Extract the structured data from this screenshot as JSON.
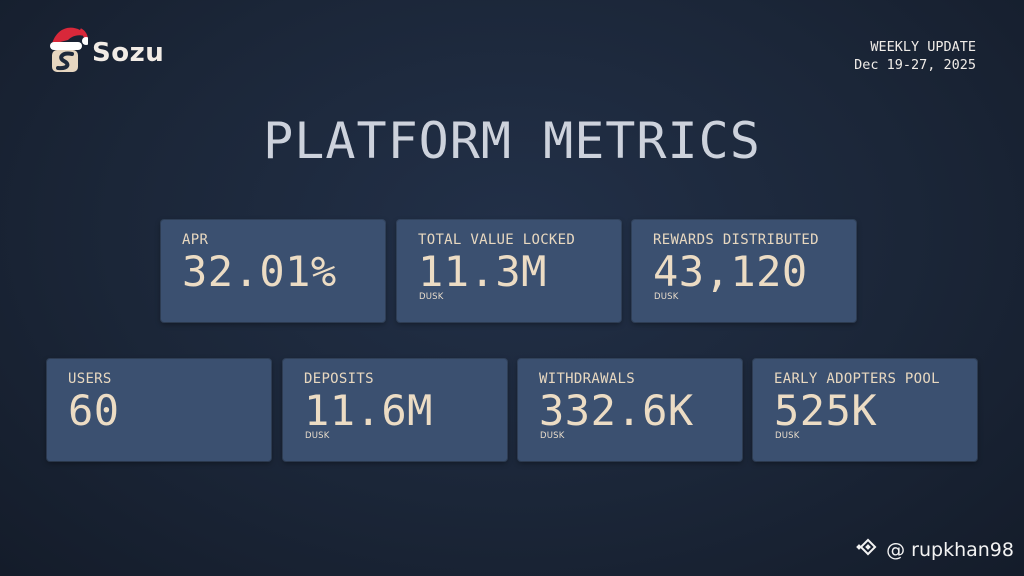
{
  "brand": {
    "name": "Sozu",
    "mark_icon": "santa-hat-s-logo-icon"
  },
  "header": {
    "line1": "WEEKLY UPDATE",
    "line2": "Dec 19-27, 2025"
  },
  "title": "PLATFORM METRICS",
  "metrics_top": [
    {
      "label": "APR",
      "value": "32.01%",
      "unit": ""
    },
    {
      "label": "TOTAL VALUE LOCKED",
      "value": "11.3M",
      "unit": "DUSK"
    },
    {
      "label": "REWARDS DISTRIBUTED",
      "value": "43,120",
      "unit": "DUSK"
    }
  ],
  "metrics_bottom": [
    {
      "label": "USERS",
      "value": "60",
      "unit": ""
    },
    {
      "label": "DEPOSITS",
      "value": "11.6M",
      "unit": "DUSK"
    },
    {
      "label": "WITHDRAWALS",
      "value": "332.6K",
      "unit": "DUSK"
    },
    {
      "label": "EARLY ADOPTERS POOL",
      "value": "525K",
      "unit": "DUSK"
    }
  ],
  "footer": {
    "icon": "binance-square-icon",
    "handle": "@ rupkhan98"
  },
  "colors": {
    "background": "#1b2638",
    "card": "#3b5070",
    "value_text": "#ecdcc4",
    "hat_red": "#d8283a"
  }
}
